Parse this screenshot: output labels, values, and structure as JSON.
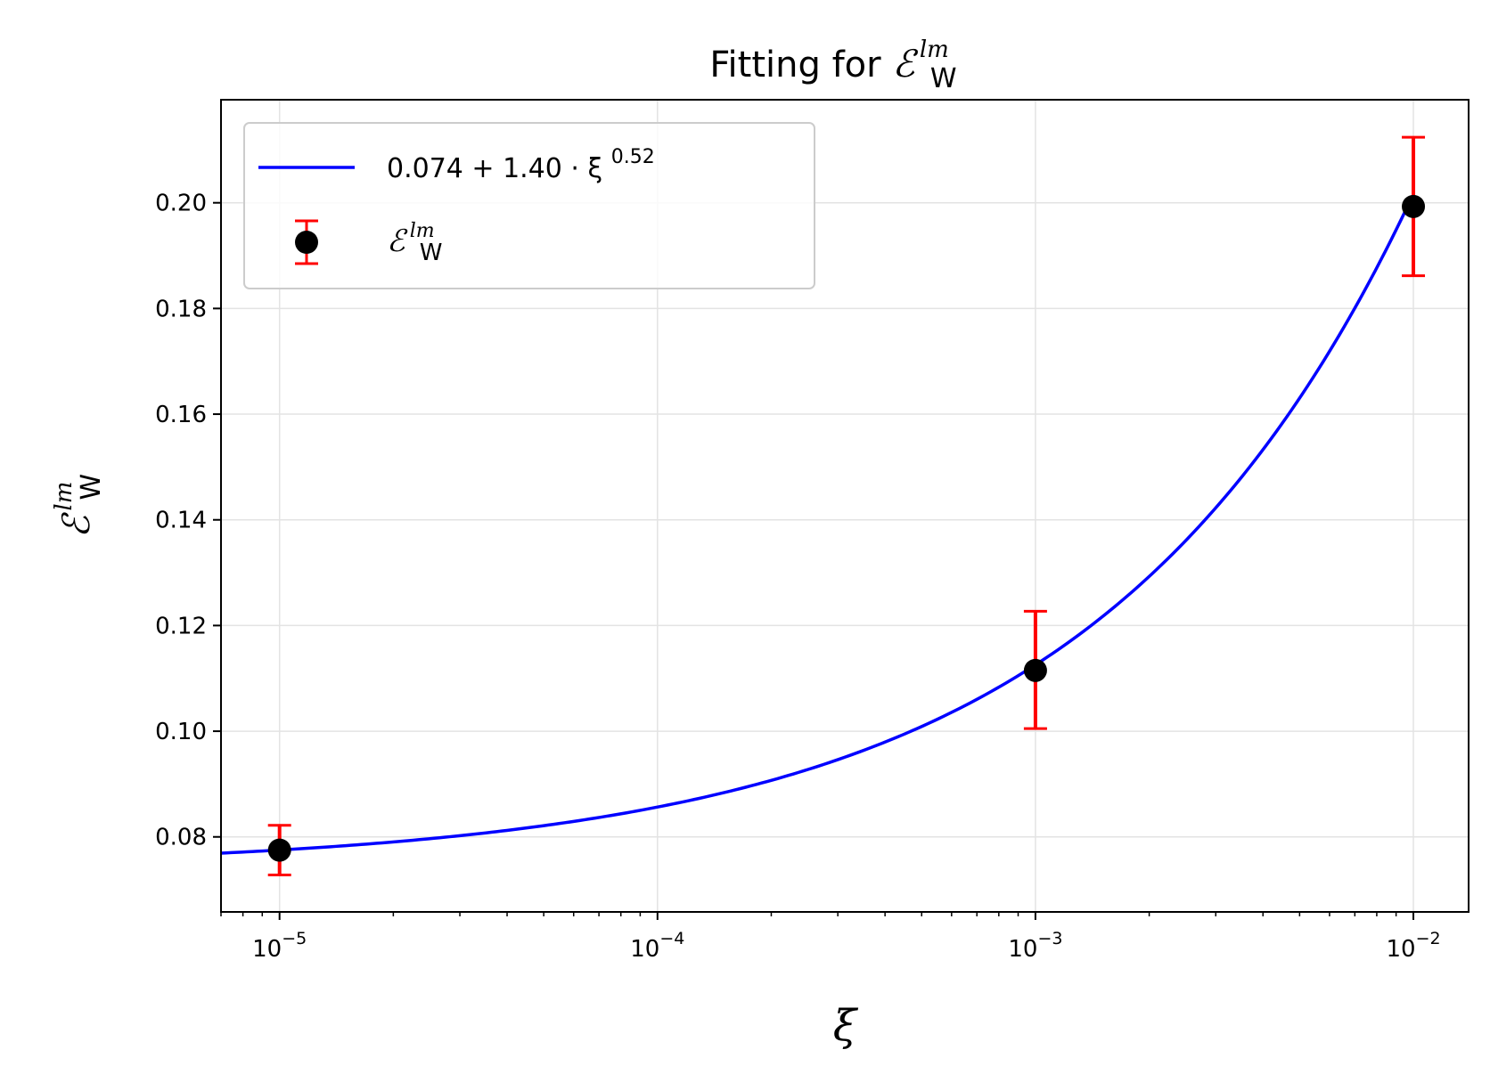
{
  "chart_data": {
    "type": "scatter",
    "title": "Fitting for ",
    "title_math": {
      "base": "ℰ",
      "sup": "lm",
      "sub": "W"
    },
    "xlabel": "ξ",
    "ylabel_math": {
      "base": "ℰ",
      "sup": "lm",
      "sub": "W"
    },
    "xscale": "log",
    "xlim": [
      7e-06,
      0.014
    ],
    "ylim": [
      0.0658,
      0.2195
    ],
    "x_ticks": [
      {
        "value": 1e-05,
        "base": "10",
        "exp": "−5"
      },
      {
        "value": 0.0001,
        "base": "10",
        "exp": "−4"
      },
      {
        "value": 0.001,
        "base": "10",
        "exp": "−3"
      },
      {
        "value": 0.01,
        "base": "10",
        "exp": "−2"
      }
    ],
    "y_ticks": [
      {
        "value": 0.08,
        "label": "0.08"
      },
      {
        "value": 0.1,
        "label": "0.10"
      },
      {
        "value": 0.12,
        "label": "0.12"
      },
      {
        "value": 0.14,
        "label": "0.14"
      },
      {
        "value": 0.16,
        "label": "0.16"
      },
      {
        "value": 0.18,
        "label": "0.18"
      },
      {
        "value": 0.2,
        "label": "0.20"
      }
    ],
    "grid": true,
    "legend_position": "upper-left",
    "series": [
      {
        "name": "0.074 + 1.40 · ξ^0.52",
        "legend_base": "0.074 + 1.40 · ξ",
        "legend_exp": "0.52",
        "kind": "line",
        "color": "#0000ff",
        "fit": {
          "a": 0.074,
          "b": 1.4,
          "p": 0.52
        },
        "x": [
          7e-06,
          1.3e-05,
          2.5e-05,
          5e-05,
          0.0001,
          0.0002,
          0.0005,
          0.001,
          0.002,
          0.005,
          0.01
        ],
        "y": [
          0.0778,
          0.0778,
          0.0795,
          0.0818,
          0.0853,
          0.09,
          0.1003,
          0.1115,
          0.1283,
          0.1596,
          0.199
        ]
      },
      {
        "name": "ℰ_W^lm",
        "kind": "errorbar",
        "marker_color": "#000000",
        "error_color": "#ff0000",
        "x": [
          1e-05,
          0.001,
          0.01
        ],
        "y": [
          0.0775,
          0.1115,
          0.1993
        ],
        "yerr_low": [
          0.0728,
          0.1005,
          0.1862
        ],
        "yerr_high": [
          0.0822,
          0.1227,
          0.2124
        ]
      }
    ]
  }
}
